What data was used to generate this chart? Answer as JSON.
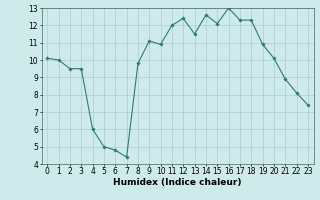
{
  "x": [
    0,
    1,
    2,
    3,
    4,
    5,
    6,
    7,
    8,
    9,
    10,
    11,
    12,
    13,
    14,
    15,
    16,
    17,
    18,
    19,
    20,
    21,
    22,
    23
  ],
  "y": [
    10.1,
    10.0,
    9.5,
    9.5,
    6.0,
    5.0,
    4.8,
    4.4,
    9.8,
    11.1,
    10.9,
    12.0,
    12.4,
    11.5,
    12.6,
    12.1,
    13.0,
    12.3,
    12.3,
    10.9,
    10.1,
    8.9,
    8.1,
    7.4
  ],
  "xlabel": "Humidex (Indice chaleur)",
  "xlim": [
    -0.5,
    23.5
  ],
  "ylim": [
    4,
    13
  ],
  "yticks": [
    4,
    5,
    6,
    7,
    8,
    9,
    10,
    11,
    12,
    13
  ],
  "xticks": [
    0,
    1,
    2,
    3,
    4,
    5,
    6,
    7,
    8,
    9,
    10,
    11,
    12,
    13,
    14,
    15,
    16,
    17,
    18,
    19,
    20,
    21,
    22,
    23
  ],
  "line_color": "#2e7d6e",
  "marker_color": "#2e7d6e",
  "bg_color": "#ceeaea",
  "grid_color": "#a8cece",
  "label_fontsize": 6.5,
  "tick_fontsize": 5.5
}
